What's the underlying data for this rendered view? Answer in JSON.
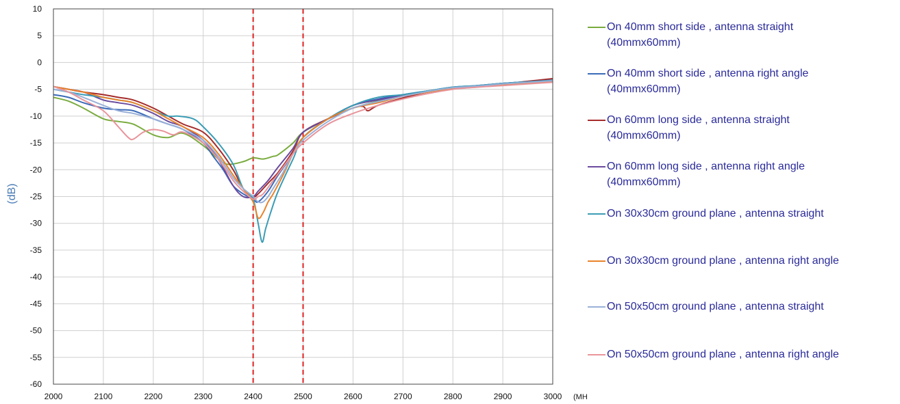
{
  "chart_data": {
    "type": "line",
    "ylabel": "(dB)",
    "xlabel": "(MHz)",
    "xlim": [
      2000,
      3000
    ],
    "ylim": [
      -60,
      10
    ],
    "x_ticks": [
      "2000",
      "2100",
      "2200",
      "2300",
      "2400",
      "2500",
      "2600",
      "2700",
      "2800",
      "2900",
      "3000"
    ],
    "y_ticks": [
      "10",
      "5",
      "0",
      "-5",
      "-10",
      "-15",
      "-20",
      "-25",
      "-30",
      "-35",
      "-40",
      "-45",
      "-50",
      "-55",
      "-60"
    ],
    "grid": true,
    "legend_position": "right",
    "reference_lines_x": [
      2400,
      2500
    ],
    "reference_line_color": "#e02020",
    "series": [
      {
        "name": "On 40mm short side , antenna straight\n(40mmx60mm)",
        "color": "#7aab3e",
        "x": [
          2000,
          2030,
          2060,
          2100,
          2130,
          2160,
          2200,
          2230,
          2260,
          2300,
          2330,
          2350,
          2380,
          2400,
          2420,
          2440,
          2450,
          2480,
          2500,
          2550,
          2600,
          2650,
          2700,
          2750,
          2800,
          2850,
          2900,
          2950,
          3000
        ],
        "y": [
          -6.5,
          -7.2,
          -8.5,
          -10.5,
          -11,
          -11.5,
          -13.5,
          -14,
          -13.2,
          -15.5,
          -18,
          -19,
          -18.5,
          -17.8,
          -18,
          -17.5,
          -17.2,
          -15,
          -13,
          -10.5,
          -8.5,
          -7.2,
          -6.2,
          -5.5,
          -4.8,
          -4.5,
          -4,
          -3.7,
          -3.5
        ]
      },
      {
        "name": "On 40mm short side , antenna right angle\n(40mmx60mm)",
        "color": "#3a6ab8",
        "x": [
          2000,
          2030,
          2060,
          2100,
          2130,
          2160,
          2200,
          2230,
          2260,
          2300,
          2320,
          2340,
          2360,
          2380,
          2400,
          2410,
          2430,
          2450,
          2480,
          2500,
          2550,
          2600,
          2650,
          2700,
          2750,
          2800,
          2850,
          2900,
          2950,
          3000
        ],
        "y": [
          -6,
          -6.5,
          -7.5,
          -8.5,
          -8.8,
          -9,
          -10.5,
          -11.5,
          -12.5,
          -15,
          -17.5,
          -20,
          -23,
          -24.5,
          -25.5,
          -26,
          -24,
          -21,
          -17,
          -14,
          -10.5,
          -8,
          -6.8,
          -6,
          -5.3,
          -4.6,
          -4.3,
          -3.9,
          -3.6,
          -3.3
        ]
      },
      {
        "name": "On 60mm long side , antenna straight\n(40mmx60mm)",
        "color": "#a52a2a",
        "x": [
          2000,
          2030,
          2060,
          2100,
          2130,
          2160,
          2200,
          2230,
          2260,
          2300,
          2330,
          2360,
          2380,
          2400,
          2410,
          2430,
          2450,
          2480,
          2500,
          2550,
          2600,
          2620,
          2630,
          2650,
          2700,
          2750,
          2800,
          2850,
          2900,
          2950,
          3000
        ],
        "y": [
          -4.5,
          -5,
          -5.5,
          -6,
          -6.5,
          -7,
          -8.5,
          -10,
          -11.5,
          -13,
          -16,
          -20,
          -23.5,
          -25,
          -24.5,
          -22.5,
          -20.5,
          -16.5,
          -13,
          -10.5,
          -8.5,
          -8.2,
          -9,
          -8,
          -6.6,
          -5.5,
          -4.8,
          -4.4,
          -4,
          -3.5,
          -3
        ]
      },
      {
        "name": "On 60mm long side , antenna right angle\n(40mmx60mm)",
        "color": "#6a4a9e",
        "x": [
          2000,
          2030,
          2060,
          2100,
          2130,
          2160,
          2200,
          2230,
          2260,
          2300,
          2330,
          2360,
          2380,
          2400,
          2410,
          2430,
          2450,
          2480,
          2500,
          2550,
          2600,
          2650,
          2700,
          2750,
          2800,
          2850,
          2900,
          2950,
          3000
        ],
        "y": [
          -4.5,
          -5,
          -5.5,
          -7,
          -7.5,
          -8,
          -9.5,
          -11,
          -12,
          -14.5,
          -18,
          -23,
          -25,
          -25,
          -24,
          -22,
          -19.5,
          -16,
          -13,
          -10.5,
          -8,
          -7,
          -6.2,
          -5.4,
          -4.7,
          -4.3,
          -3.9,
          -3.6,
          -3.3
        ]
      },
      {
        "name": "On 30x30cm ground plane , antenna straight",
        "color": "#3a9cb5",
        "x": [
          2000,
          2030,
          2060,
          2100,
          2130,
          2160,
          2200,
          2230,
          2250,
          2280,
          2300,
          2330,
          2360,
          2380,
          2400,
          2410,
          2418,
          2425,
          2435,
          2450,
          2480,
          2500,
          2550,
          2600,
          2650,
          2700,
          2750,
          2800,
          2850,
          2900,
          2950,
          3000
        ],
        "y": [
          -5,
          -5.5,
          -6,
          -6.5,
          -7,
          -7.5,
          -9,
          -10,
          -10,
          -10.5,
          -12,
          -15,
          -19,
          -23.5,
          -25.5,
          -30,
          -33.5,
          -31,
          -28,
          -24,
          -18,
          -14,
          -10.5,
          -8,
          -6.5,
          -6,
          -5.3,
          -4.6,
          -4.3,
          -3.9,
          -3.6,
          -3.3
        ]
      },
      {
        "name": "On 30x30cm ground plane , antenna right angle",
        "color": "#e8832a",
        "x": [
          2000,
          2030,
          2060,
          2100,
          2130,
          2160,
          2200,
          2230,
          2260,
          2300,
          2330,
          2360,
          2380,
          2400,
          2410,
          2420,
          2430,
          2440,
          2460,
          2480,
          2500,
          2550,
          2600,
          2650,
          2700,
          2750,
          2800,
          2850,
          2900,
          2950,
          3000
        ],
        "y": [
          -4.5,
          -5,
          -5.5,
          -6.5,
          -7,
          -7.5,
          -9,
          -10.5,
          -12,
          -14,
          -17,
          -21,
          -23.5,
          -26,
          -29,
          -28,
          -26,
          -24.5,
          -21,
          -17,
          -14,
          -10.5,
          -8.5,
          -7.5,
          -6.3,
          -5.5,
          -4.8,
          -4.5,
          -4.1,
          -3.8,
          -3.5
        ]
      },
      {
        "name": "On 50x50cm ground plane , antenna straight",
        "color": "#9ab0d8",
        "x": [
          2000,
          2030,
          2060,
          2100,
          2130,
          2160,
          2200,
          2230,
          2260,
          2300,
          2330,
          2360,
          2380,
          2400,
          2410,
          2420,
          2430,
          2440,
          2460,
          2480,
          2500,
          2550,
          2600,
          2650,
          2700,
          2750,
          2800,
          2850,
          2900,
          2950,
          3000
        ],
        "y": [
          -5,
          -5.5,
          -6.5,
          -8,
          -9,
          -9.5,
          -10.5,
          -11.5,
          -12.5,
          -14.5,
          -17.5,
          -21.5,
          -23.5,
          -25,
          -26,
          -26,
          -25,
          -23.5,
          -20.5,
          -17,
          -14.5,
          -11,
          -8.5,
          -7.3,
          -6.3,
          -5.4,
          -4.7,
          -4.4,
          -4,
          -3.7,
          -3.4
        ]
      },
      {
        "name": "On 50x50cm ground plane , antenna right angle",
        "color": "#e8949a",
        "x": [
          2000,
          2030,
          2060,
          2100,
          2130,
          2150,
          2160,
          2180,
          2200,
          2220,
          2240,
          2260,
          2300,
          2330,
          2360,
          2380,
          2400,
          2410,
          2420,
          2440,
          2460,
          2480,
          2500,
          2550,
          2600,
          2650,
          2700,
          2750,
          2800,
          2850,
          2900,
          2950,
          3000
        ],
        "y": [
          -4.5,
          -5.5,
          -7,
          -9,
          -12,
          -14,
          -14.3,
          -13,
          -12.5,
          -12.8,
          -13.5,
          -13,
          -15,
          -18,
          -22,
          -24,
          -25.5,
          -25,
          -24.5,
          -22,
          -19.5,
          -17,
          -15,
          -11.5,
          -9.5,
          -8,
          -6.8,
          -5.8,
          -5,
          -4.6,
          -4.3,
          -4,
          -3.7
        ]
      }
    ]
  }
}
